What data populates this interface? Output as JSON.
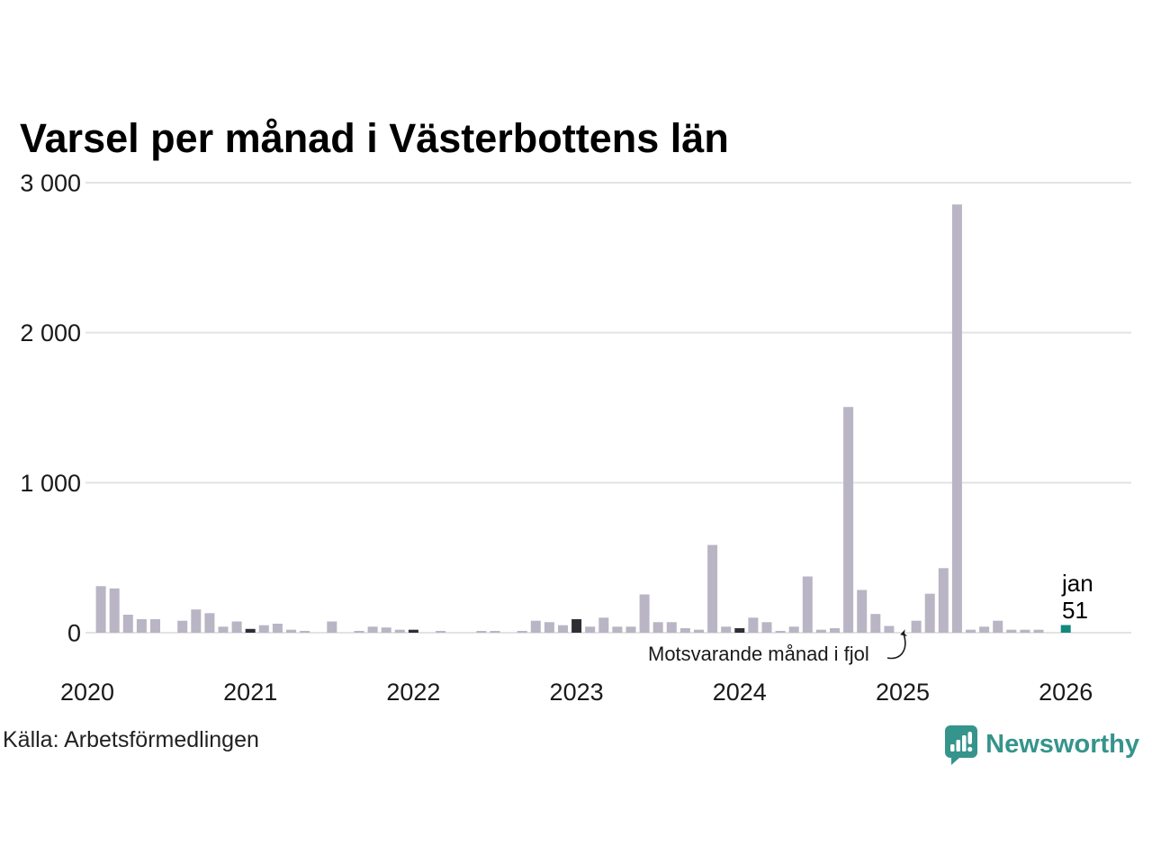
{
  "chart_data": {
    "type": "bar",
    "title": "Varsel per månad i Västerbottens län",
    "xlabel": "",
    "ylabel": "",
    "x_tick_labels": [
      "2020",
      "2021",
      "2022",
      "2023",
      "2024",
      "2025",
      "2026"
    ],
    "y_ticks": [
      0,
      1000,
      2000,
      3000
    ],
    "y_tick_labels": [
      "0",
      "1 000",
      "2 000",
      "3 000"
    ],
    "ylim": [
      0,
      3000
    ],
    "grid": "horizontal",
    "series": [
      {
        "name": "Varsel per månad",
        "points": [
          [
            "2020-01",
            0
          ],
          [
            "2020-02",
            310
          ],
          [
            "2020-03",
            295
          ],
          [
            "2020-04",
            120
          ],
          [
            "2020-05",
            90
          ],
          [
            "2020-06",
            90
          ],
          [
            "2020-07",
            0
          ],
          [
            "2020-08",
            80
          ],
          [
            "2020-09",
            155
          ],
          [
            "2020-10",
            130
          ],
          [
            "2020-11",
            40
          ],
          [
            "2020-12",
            75
          ],
          [
            "2021-01",
            25
          ],
          [
            "2021-02",
            50
          ],
          [
            "2021-03",
            60
          ],
          [
            "2021-04",
            20
          ],
          [
            "2021-05",
            10
          ],
          [
            "2021-06",
            0
          ],
          [
            "2021-07",
            75
          ],
          [
            "2021-08",
            0
          ],
          [
            "2021-09",
            10
          ],
          [
            "2021-10",
            40
          ],
          [
            "2021-11",
            35
          ],
          [
            "2021-12",
            20
          ],
          [
            "2022-01",
            20
          ],
          [
            "2022-02",
            0
          ],
          [
            "2022-03",
            10
          ],
          [
            "2022-04",
            0
          ],
          [
            "2022-05",
            0
          ],
          [
            "2022-06",
            10
          ],
          [
            "2022-07",
            10
          ],
          [
            "2022-08",
            0
          ],
          [
            "2022-09",
            10
          ],
          [
            "2022-10",
            80
          ],
          [
            "2022-11",
            70
          ],
          [
            "2022-12",
            50
          ],
          [
            "2023-01",
            90
          ],
          [
            "2023-02",
            40
          ],
          [
            "2023-03",
            100
          ],
          [
            "2023-04",
            40
          ],
          [
            "2023-05",
            40
          ],
          [
            "2023-06",
            255
          ],
          [
            "2023-07",
            70
          ],
          [
            "2023-08",
            70
          ],
          [
            "2023-09",
            30
          ],
          [
            "2023-10",
            20
          ],
          [
            "2023-11",
            585
          ],
          [
            "2023-12",
            40
          ],
          [
            "2024-01",
            30
          ],
          [
            "2024-02",
            100
          ],
          [
            "2024-03",
            70
          ],
          [
            "2024-04",
            10
          ],
          [
            "2024-05",
            40
          ],
          [
            "2024-06",
            375
          ],
          [
            "2024-07",
            20
          ],
          [
            "2024-08",
            30
          ],
          [
            "2024-09",
            1505
          ],
          [
            "2024-10",
            285
          ],
          [
            "2024-11",
            125
          ],
          [
            "2024-12",
            45
          ],
          [
            "2025-01",
            0
          ],
          [
            "2025-02",
            80
          ],
          [
            "2025-03",
            260
          ],
          [
            "2025-04",
            430
          ],
          [
            "2025-05",
            2855
          ],
          [
            "2025-06",
            20
          ],
          [
            "2025-07",
            40
          ],
          [
            "2025-08",
            80
          ],
          [
            "2025-09",
            20
          ],
          [
            "2025-10",
            20
          ],
          [
            "2025-11",
            20
          ],
          [
            "2025-12",
            0
          ],
          [
            "2026-01",
            51
          ]
        ]
      }
    ],
    "annotation": {
      "text": "Motsvarande månad i fjol",
      "points_to": "2025-01"
    },
    "latest_label": {
      "line1": "jan",
      "line2": "51"
    },
    "colors": {
      "bar": "#b9b5c4",
      "prev_jan_bar": "#302e35",
      "latest_bar": "#12897e",
      "gridline": "#e3e3e3",
      "axis_text": "#1a1a1a"
    }
  },
  "footer": {
    "source": "Källa: Arbetsförmedlingen",
    "brand": "Newsworthy",
    "brand_color": "#35948b"
  }
}
